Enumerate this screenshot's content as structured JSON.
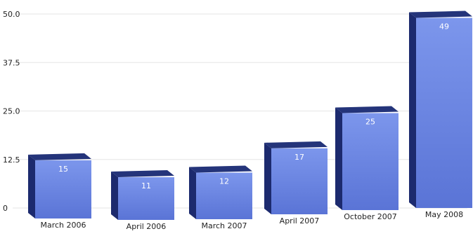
{
  "chart_data": {
    "type": "bar",
    "categories": [
      "March 2006",
      "April 2006",
      "March 2007",
      "April 2007",
      "October 2007",
      "May 2008"
    ],
    "values": [
      15,
      11,
      12,
      17,
      25,
      49
    ],
    "value_labels": [
      "15",
      "11",
      "12",
      "17",
      "25",
      "49"
    ],
    "y_ticks": [
      "0",
      "12.5",
      "25.0",
      "37.5",
      "50.0"
    ],
    "ylim": [
      0,
      50
    ],
    "grid": true,
    "legend": "none",
    "colors": {
      "front_top": "#7c96ec",
      "front_bottom": "#5a74d6",
      "side": "#1c2a6e",
      "top": "#24347a",
      "grid": "#e6e6e6"
    }
  }
}
